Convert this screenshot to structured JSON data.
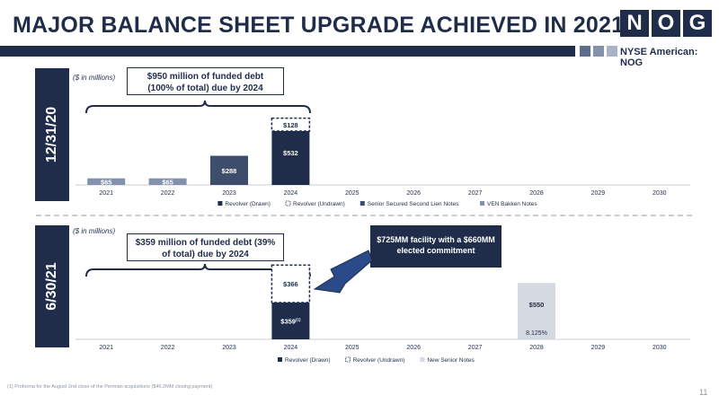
{
  "header": {
    "title": "MAJOR BALANCE SHEET UPGRADE ACHIEVED IN 2021",
    "logo_letters": [
      "N",
      "O",
      "G"
    ],
    "exchange": "NYSE American: NOG",
    "colors": {
      "navy": "#1f2d4a",
      "accent_squares": [
        "#5b6b8c",
        "#8391ad",
        "#a9b3c7"
      ]
    }
  },
  "footnote": "(1) Proforma for the August 2nd close of the Permian acquisitions ($46.2MM closing payment)",
  "page_number": "11",
  "panels": [
    {
      "side_label": "12/31/20",
      "units": "($ in millions)",
      "callout": "$950 million of funded debt (100% of total) due by 2024"
    },
    {
      "side_label": "6/30/21",
      "units": "($ in millions)",
      "callout": "$359 million of funded debt (39% of total) due by 2024",
      "facility_note": "$725MM facility with a $660MM elected commitment"
    }
  ],
  "chart_data": [
    {
      "type": "bar",
      "stacked": true,
      "categories": [
        "2021",
        "2022",
        "2023",
        "2024",
        "2025",
        "2026",
        "2027",
        "2028",
        "2029",
        "2030"
      ],
      "series": [
        {
          "name": "Revolver (Drawn)",
          "color": "#1f2d4a",
          "values": [
            0,
            0,
            0,
            532,
            0,
            0,
            0,
            0,
            0,
            0
          ],
          "labels": [
            "",
            "",
            "",
            "$532",
            "",
            "",
            "",
            "",
            "",
            ""
          ]
        },
        {
          "name": "Revolver (Undrawn)",
          "color": "#ffffff",
          "dashed": true,
          "values": [
            0,
            0,
            0,
            128,
            0,
            0,
            0,
            0,
            0,
            0
          ],
          "labels": [
            "",
            "",
            "",
            "$128",
            "",
            "",
            "",
            "",
            "",
            ""
          ]
        },
        {
          "name": "Senior Secured Second Lien Notes",
          "color": "#3d4d6b",
          "values": [
            0,
            0,
            288,
            0,
            0,
            0,
            0,
            0,
            0,
            0
          ],
          "labels": [
            "",
            "",
            "$288",
            "",
            "",
            "",
            "",
            "",
            "",
            ""
          ]
        },
        {
          "name": "VEN Bakken Notes",
          "color": "#8391ad",
          "values": [
            65,
            65,
            0,
            0,
            0,
            0,
            0,
            0,
            0,
            0
          ],
          "labels": [
            "$65",
            "$65",
            "",
            "",
            "",
            "",
            "",
            "",
            "",
            ""
          ]
        }
      ],
      "ylim": [
        0,
        700
      ],
      "legend": "bottom"
    },
    {
      "type": "bar",
      "stacked": true,
      "categories": [
        "2021",
        "2022",
        "2023",
        "2024",
        "2025",
        "2026",
        "2027",
        "2028",
        "2029",
        "2030"
      ],
      "series": [
        {
          "name": "Revolver (Drawn)",
          "color": "#1f2d4a",
          "values": [
            0,
            0,
            0,
            359,
            0,
            0,
            0,
            0,
            0,
            0
          ],
          "labels": [
            "",
            "",
            "",
            "$359",
            "",
            "",
            "",
            "",
            "",
            ""
          ],
          "label_sup": "(1)"
        },
        {
          "name": "Revolver (Undrawn)",
          "color": "#ffffff",
          "dashed": true,
          "values": [
            0,
            0,
            0,
            366,
            0,
            0,
            0,
            0,
            0,
            0
          ],
          "labels": [
            "",
            "",
            "",
            "$366",
            "",
            "",
            "",
            "",
            "",
            ""
          ]
        },
        {
          "name": "New Senior Notes",
          "color": "#d5d9e1",
          "values": [
            0,
            0,
            0,
            0,
            0,
            0,
            0,
            550,
            0,
            0
          ],
          "labels": [
            "",
            "",
            "",
            "",
            "",
            "",
            "",
            "$550",
            "",
            ""
          ],
          "sublabel": "8.125%"
        }
      ],
      "ylim": [
        0,
        760
      ],
      "legend": "bottom"
    }
  ]
}
